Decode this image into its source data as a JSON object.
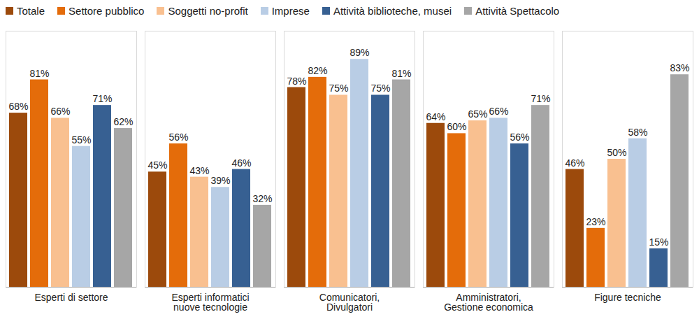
{
  "chart_data": {
    "type": "bar",
    "categories": [
      "Esperti di settore",
      "Esperti informatici\nnuove tecnologie",
      "Comunicatori,\nDivulgatori",
      "Amministratori,\nGestione economica",
      "Figure tecniche"
    ],
    "series": [
      {
        "name": "Totale",
        "color": "#9c4a0c",
        "values": [
          68,
          45,
          78,
          64,
          46
        ],
        "value_labels": [
          "68%",
          "45%",
          "78%",
          "64%",
          "46%"
        ]
      },
      {
        "name": "Settore pubblico",
        "color": "#e46c0a",
        "values": [
          81,
          56,
          82,
          60,
          23
        ],
        "value_labels": [
          "81%",
          "56%",
          "82%",
          "60%",
          "23%"
        ]
      },
      {
        "name": "Soggetti no-profit",
        "color": "#f9c090",
        "values": [
          66,
          43,
          75,
          65,
          50
        ],
        "value_labels": [
          "66%",
          "43%",
          "75%",
          "65%",
          "50%"
        ]
      },
      {
        "name": "Imprese",
        "color": "#b9cde5",
        "values": [
          55,
          39,
          89,
          66,
          58
        ],
        "value_labels": [
          "55%",
          "39%",
          "89%",
          "66%",
          "58%"
        ]
      },
      {
        "name": "Attività biblioteche, musei",
        "color": "#376092",
        "values": [
          71,
          46,
          75,
          56,
          15
        ],
        "value_labels": [
          "71%",
          "46%",
          "75%",
          "56%",
          "15%"
        ]
      },
      {
        "name": "Attività Spettacolo",
        "color": "#a6a6a6",
        "values": [
          62,
          32,
          81,
          71,
          83
        ],
        "value_labels": [
          "62%",
          "32%",
          "81%",
          "71%",
          "83%"
        ]
      }
    ],
    "ylim": [
      0,
      100
    ],
    "yticks": [],
    "data_labels": true,
    "tick_labels": "x",
    "legend": "top"
  }
}
